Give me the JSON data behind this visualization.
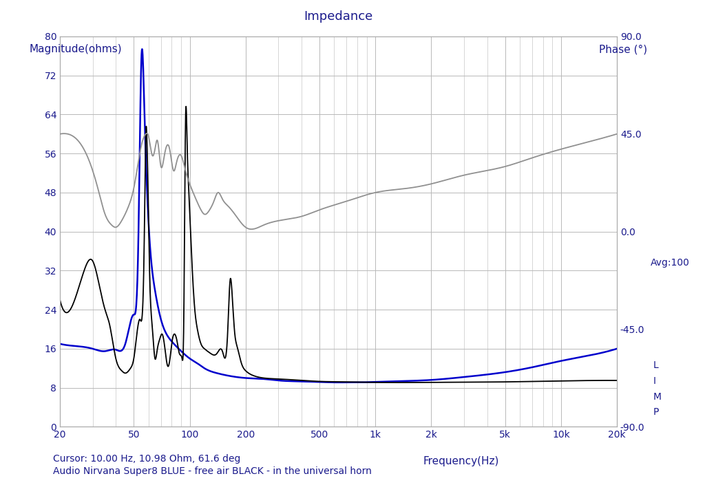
{
  "title": "Impedance",
  "ylabel_left": "Magnitude(ohms)",
  "ylabel_right": "Phase (°)",
  "xlabel": "Frequency(Hz)",
  "cursor_text": "Cursor: 10.00 Hz, 10.98 Ohm, 61.6 deg",
  "legend_text": "Audio Nirvana Super8 BLUE - free air BLACK - in the universal horn",
  "avg_text": "Avg:100",
  "limp_text": "L\nI\nM\nP",
  "ylim_left": [
    0.0,
    80.0
  ],
  "ylim_right": [
    -90.0,
    90.0
  ],
  "xlim": [
    20,
    20000
  ],
  "yticks_left": [
    0.0,
    8.0,
    16.0,
    24.0,
    32.0,
    40.0,
    48.0,
    56.0,
    64.0,
    72.0,
    80.0
  ],
  "yticks_right": [
    90.0,
    45.0,
    0.0,
    -45.0,
    -90.0
  ],
  "xticks": [
    20,
    50,
    100,
    200,
    500,
    1000,
    2000,
    5000,
    10000,
    20000
  ],
  "xtick_labels": [
    "20",
    "50",
    "100",
    "200",
    "500",
    "1k",
    "2k",
    "5k",
    "10k",
    "20k"
  ],
  "background_color": "#ffffff",
  "grid_color": "#b8b8b8",
  "text_color": "#1a1a8c",
  "blue_color": "#0000cc",
  "black_color": "#000000",
  "gray_color": "#909090",
  "title_fontsize": 13,
  "label_fontsize": 11,
  "tick_fontsize": 10,
  "annotation_fontsize": 10
}
